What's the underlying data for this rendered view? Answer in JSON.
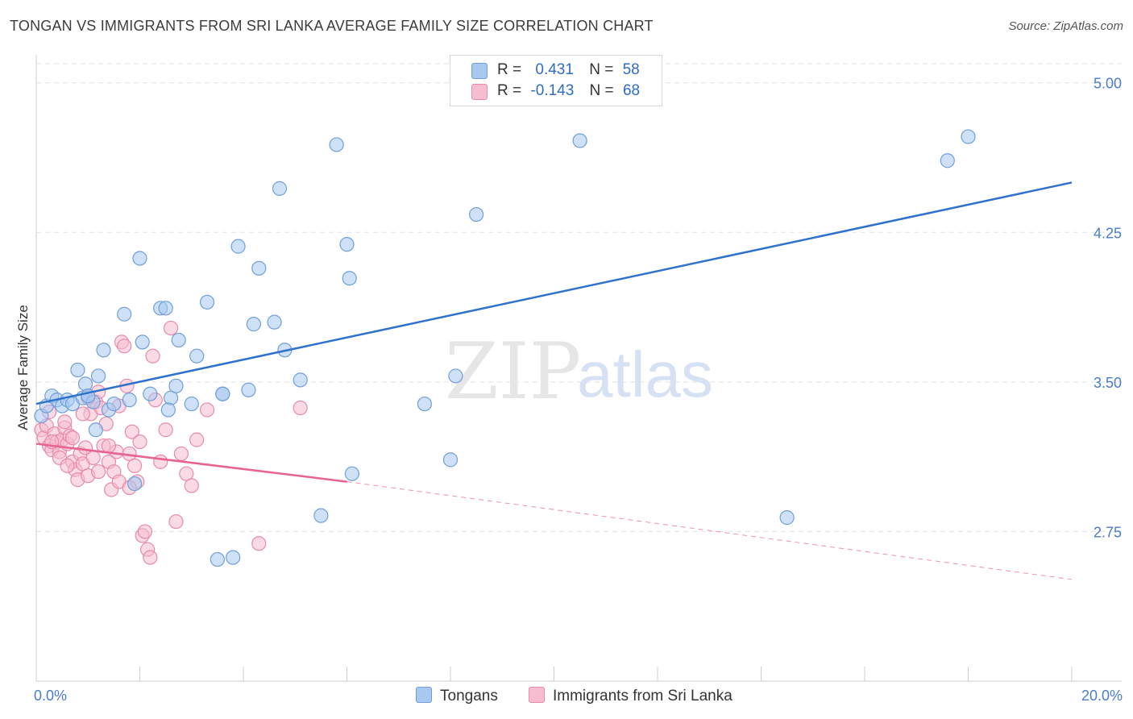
{
  "title": "TONGAN VS IMMIGRANTS FROM SRI LANKA AVERAGE FAMILY SIZE CORRELATION CHART",
  "source": "Source: ZipAtlas.com",
  "watermark": {
    "zip": "ZIP",
    "atlas": "atlas"
  },
  "legend": {
    "rows": [
      {
        "r_label": "R =",
        "r_value": "0.431",
        "n_label": "N =",
        "n_value": "58",
        "color": "#a8c8ef",
        "border": "#6f9fdc"
      },
      {
        "r_label": "R =",
        "r_value": "-0.143",
        "n_label": "N =",
        "n_value": "68",
        "color": "#f6bccf",
        "border": "#e98aab"
      }
    ]
  },
  "bottom_legend": [
    "Tongans",
    "Immigrants from Sri Lanka"
  ],
  "chart_data": {
    "type": "scatter",
    "title": "TONGAN VS IMMIGRANTS FROM SRI LANKA AVERAGE FAMILY SIZE CORRELATION CHART",
    "xlabel": "",
    "ylabel": "Average Family Size",
    "xlim": [
      0,
      20
    ],
    "ylim": [
      2.0,
      5.1
    ],
    "x_tick_labels": [
      "0.0%",
      "20.0%"
    ],
    "y_ticks": [
      2.75,
      3.5,
      4.25,
      5.0
    ],
    "y_tick_labels": [
      "2.75",
      "3.50",
      "4.25",
      "5.00"
    ],
    "grid": true,
    "legend_position": "top-center",
    "series": [
      {
        "name": "Tongans",
        "color": "#6f9fdc",
        "fill": "#a8c8ef",
        "line_color": "#2f72cc",
        "trend": {
          "x0": 0.0,
          "y0": 3.39,
          "x1": 20.0,
          "y1": 4.5
        },
        "points": [
          [
            0.1,
            3.33
          ],
          [
            0.2,
            3.38
          ],
          [
            0.3,
            3.43
          ],
          [
            0.4,
            3.41
          ],
          [
            0.5,
            3.38
          ],
          [
            0.6,
            3.41
          ],
          [
            0.7,
            3.39
          ],
          [
            0.8,
            3.56
          ],
          [
            0.9,
            3.42
          ],
          [
            0.95,
            3.49
          ],
          [
            1.0,
            3.43
          ],
          [
            1.1,
            3.4
          ],
          [
            1.15,
            3.26
          ],
          [
            1.2,
            3.53
          ],
          [
            1.3,
            3.66
          ],
          [
            1.4,
            3.36
          ],
          [
            1.5,
            3.39
          ],
          [
            1.7,
            3.84
          ],
          [
            1.8,
            3.41
          ],
          [
            1.9,
            2.99
          ],
          [
            2.0,
            4.12
          ],
          [
            2.05,
            3.7
          ],
          [
            2.2,
            3.44
          ],
          [
            2.4,
            3.87
          ],
          [
            2.5,
            3.87
          ],
          [
            2.6,
            3.42
          ],
          [
            2.55,
            3.36
          ],
          [
            2.7,
            3.48
          ],
          [
            2.75,
            3.71
          ],
          [
            3.0,
            3.39
          ],
          [
            3.1,
            3.63
          ],
          [
            3.3,
            3.9
          ],
          [
            3.5,
            2.61
          ],
          [
            3.6,
            3.44
          ],
          [
            3.8,
            2.62
          ],
          [
            3.9,
            4.18
          ],
          [
            4.1,
            3.46
          ],
          [
            4.2,
            3.79
          ],
          [
            4.3,
            4.07
          ],
          [
            4.6,
            3.8
          ],
          [
            4.7,
            4.47
          ],
          [
            4.8,
            3.66
          ],
          [
            5.1,
            3.51
          ],
          [
            5.5,
            2.83
          ],
          [
            5.8,
            4.69
          ],
          [
            6.0,
            4.19
          ],
          [
            6.05,
            4.02
          ],
          [
            6.1,
            3.04
          ],
          [
            7.5,
            3.39
          ],
          [
            8.0,
            3.11
          ],
          [
            8.1,
            3.53
          ],
          [
            8.5,
            4.34
          ],
          [
            10.5,
            4.71
          ],
          [
            14.5,
            2.82
          ],
          [
            17.6,
            4.61
          ],
          [
            18.0,
            4.73
          ],
          [
            1.0,
            3.43
          ],
          [
            3.6,
            3.44
          ]
        ]
      },
      {
        "name": "Immigrants from Sri Lanka",
        "color": "#e98aab",
        "fill": "#f6bccf",
        "line_color": "#e8638f",
        "trend": {
          "x0": 0.0,
          "y0": 3.19,
          "x1": 6.0,
          "y1": 3.0
        },
        "trend_dashed": {
          "x0": 6.0,
          "y0": 3.0,
          "x1": 20.0,
          "y1": 2.51
        },
        "points": [
          [
            0.1,
            3.26
          ],
          [
            0.15,
            3.22
          ],
          [
            0.2,
            3.28
          ],
          [
            0.25,
            3.18
          ],
          [
            0.3,
            3.16
          ],
          [
            0.35,
            3.24
          ],
          [
            0.4,
            3.2
          ],
          [
            0.45,
            3.15
          ],
          [
            0.5,
            3.21
          ],
          [
            0.55,
            3.27
          ],
          [
            0.6,
            3.19
          ],
          [
            0.65,
            3.23
          ],
          [
            0.7,
            3.1
          ],
          [
            0.75,
            3.06
          ],
          [
            0.8,
            3.01
          ],
          [
            0.85,
            3.14
          ],
          [
            0.9,
            3.09
          ],
          [
            0.95,
            3.17
          ],
          [
            1.0,
            3.03
          ],
          [
            1.05,
            3.34
          ],
          [
            1.1,
            3.12
          ],
          [
            1.15,
            3.4
          ],
          [
            1.2,
            3.45
          ],
          [
            1.25,
            3.37
          ],
          [
            1.3,
            3.18
          ],
          [
            1.35,
            3.29
          ],
          [
            1.4,
            3.1
          ],
          [
            1.45,
            2.96
          ],
          [
            1.5,
            3.05
          ],
          [
            1.55,
            3.15
          ],
          [
            1.6,
            3.38
          ],
          [
            1.65,
            3.7
          ],
          [
            1.7,
            3.68
          ],
          [
            1.75,
            3.48
          ],
          [
            1.8,
            3.14
          ],
          [
            1.85,
            3.25
          ],
          [
            1.9,
            3.08
          ],
          [
            1.95,
            3.0
          ],
          [
            2.0,
            3.2
          ],
          [
            2.05,
            2.73
          ],
          [
            2.1,
            2.75
          ],
          [
            2.15,
            2.66
          ],
          [
            2.2,
            2.62
          ],
          [
            2.25,
            3.63
          ],
          [
            2.3,
            3.41
          ],
          [
            2.4,
            3.1
          ],
          [
            2.5,
            3.26
          ],
          [
            2.6,
            3.77
          ],
          [
            2.7,
            2.8
          ],
          [
            2.8,
            3.14
          ],
          [
            2.9,
            3.04
          ],
          [
            3.0,
            2.98
          ],
          [
            3.1,
            3.21
          ],
          [
            3.3,
            3.36
          ],
          [
            4.3,
            2.69
          ],
          [
            5.1,
            3.37
          ],
          [
            0.3,
            3.2
          ],
          [
            0.45,
            3.12
          ],
          [
            0.55,
            3.3
          ],
          [
            0.7,
            3.22
          ],
          [
            0.9,
            3.34
          ],
          [
            1.0,
            3.42
          ],
          [
            1.2,
            3.05
          ],
          [
            1.4,
            3.18
          ],
          [
            1.6,
            3.0
          ],
          [
            1.8,
            2.97
          ],
          [
            0.25,
            3.35
          ],
          [
            0.6,
            3.08
          ]
        ]
      }
    ]
  }
}
